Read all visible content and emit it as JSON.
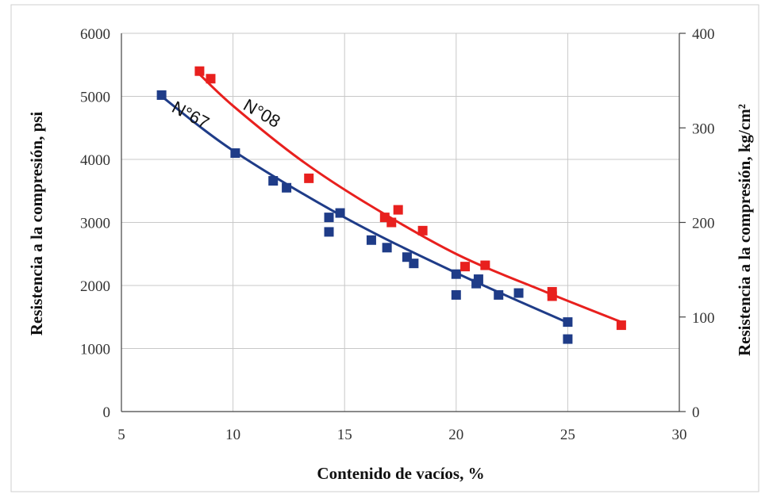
{
  "chart_data": {
    "type": "scatter",
    "xlabel": "Contenido de vacíos, %",
    "ylabel": "Resistencia a la compresión, psi",
    "y2label": "Resistencia a la compresión, kg/cm²",
    "xlim": [
      5,
      30
    ],
    "ylim": [
      0,
      6000
    ],
    "y2lim": [
      0,
      400
    ],
    "xticks": [
      "5",
      "10",
      "15",
      "20",
      "25",
      "30"
    ],
    "yticks": [
      "0",
      "1000",
      "2000",
      "3000",
      "4000",
      "5000",
      "6000"
    ],
    "y2ticks": [
      "0",
      "100",
      "200",
      "300",
      "400"
    ],
    "grid": true,
    "series": [
      {
        "name": "N°67",
        "color": "#1f3c88",
        "points": [
          [
            6.8,
            5020
          ],
          [
            10.1,
            4100
          ],
          [
            11.8,
            3660
          ],
          [
            12.4,
            3550
          ],
          [
            14.3,
            3080
          ],
          [
            14.3,
            2850
          ],
          [
            14.8,
            3150
          ],
          [
            16.2,
            2720
          ],
          [
            16.9,
            2600
          ],
          [
            17.8,
            2450
          ],
          [
            18.1,
            2350
          ],
          [
            20.0,
            2180
          ],
          [
            20.0,
            1850
          ],
          [
            20.9,
            2030
          ],
          [
            21.0,
            2100
          ],
          [
            21.9,
            1850
          ],
          [
            22.8,
            1880
          ],
          [
            25.0,
            1420
          ],
          [
            25.0,
            1150
          ]
        ],
        "trend": [
          [
            6.8,
            5000
          ],
          [
            10,
            4140
          ],
          [
            15,
            3080
          ],
          [
            20,
            2200
          ],
          [
            25,
            1410
          ]
        ]
      },
      {
        "name": "N°08",
        "color": "#e8201e",
        "points": [
          [
            8.5,
            5400
          ],
          [
            9.0,
            5280
          ],
          [
            13.4,
            3700
          ],
          [
            16.8,
            3080
          ],
          [
            17.1,
            3000
          ],
          [
            17.4,
            3200
          ],
          [
            18.5,
            2870
          ],
          [
            20.4,
            2300
          ],
          [
            21.3,
            2320
          ],
          [
            24.3,
            1900
          ],
          [
            24.3,
            1830
          ],
          [
            27.4,
            1370
          ]
        ],
        "trend": [
          [
            8.5,
            5350
          ],
          [
            10,
            4850
          ],
          [
            13,
            4000
          ],
          [
            16,
            3300
          ],
          [
            20,
            2500
          ],
          [
            24,
            1900
          ],
          [
            27.4,
            1420
          ]
        ]
      }
    ],
    "annotations": [
      "N°67",
      "N°08"
    ]
  }
}
